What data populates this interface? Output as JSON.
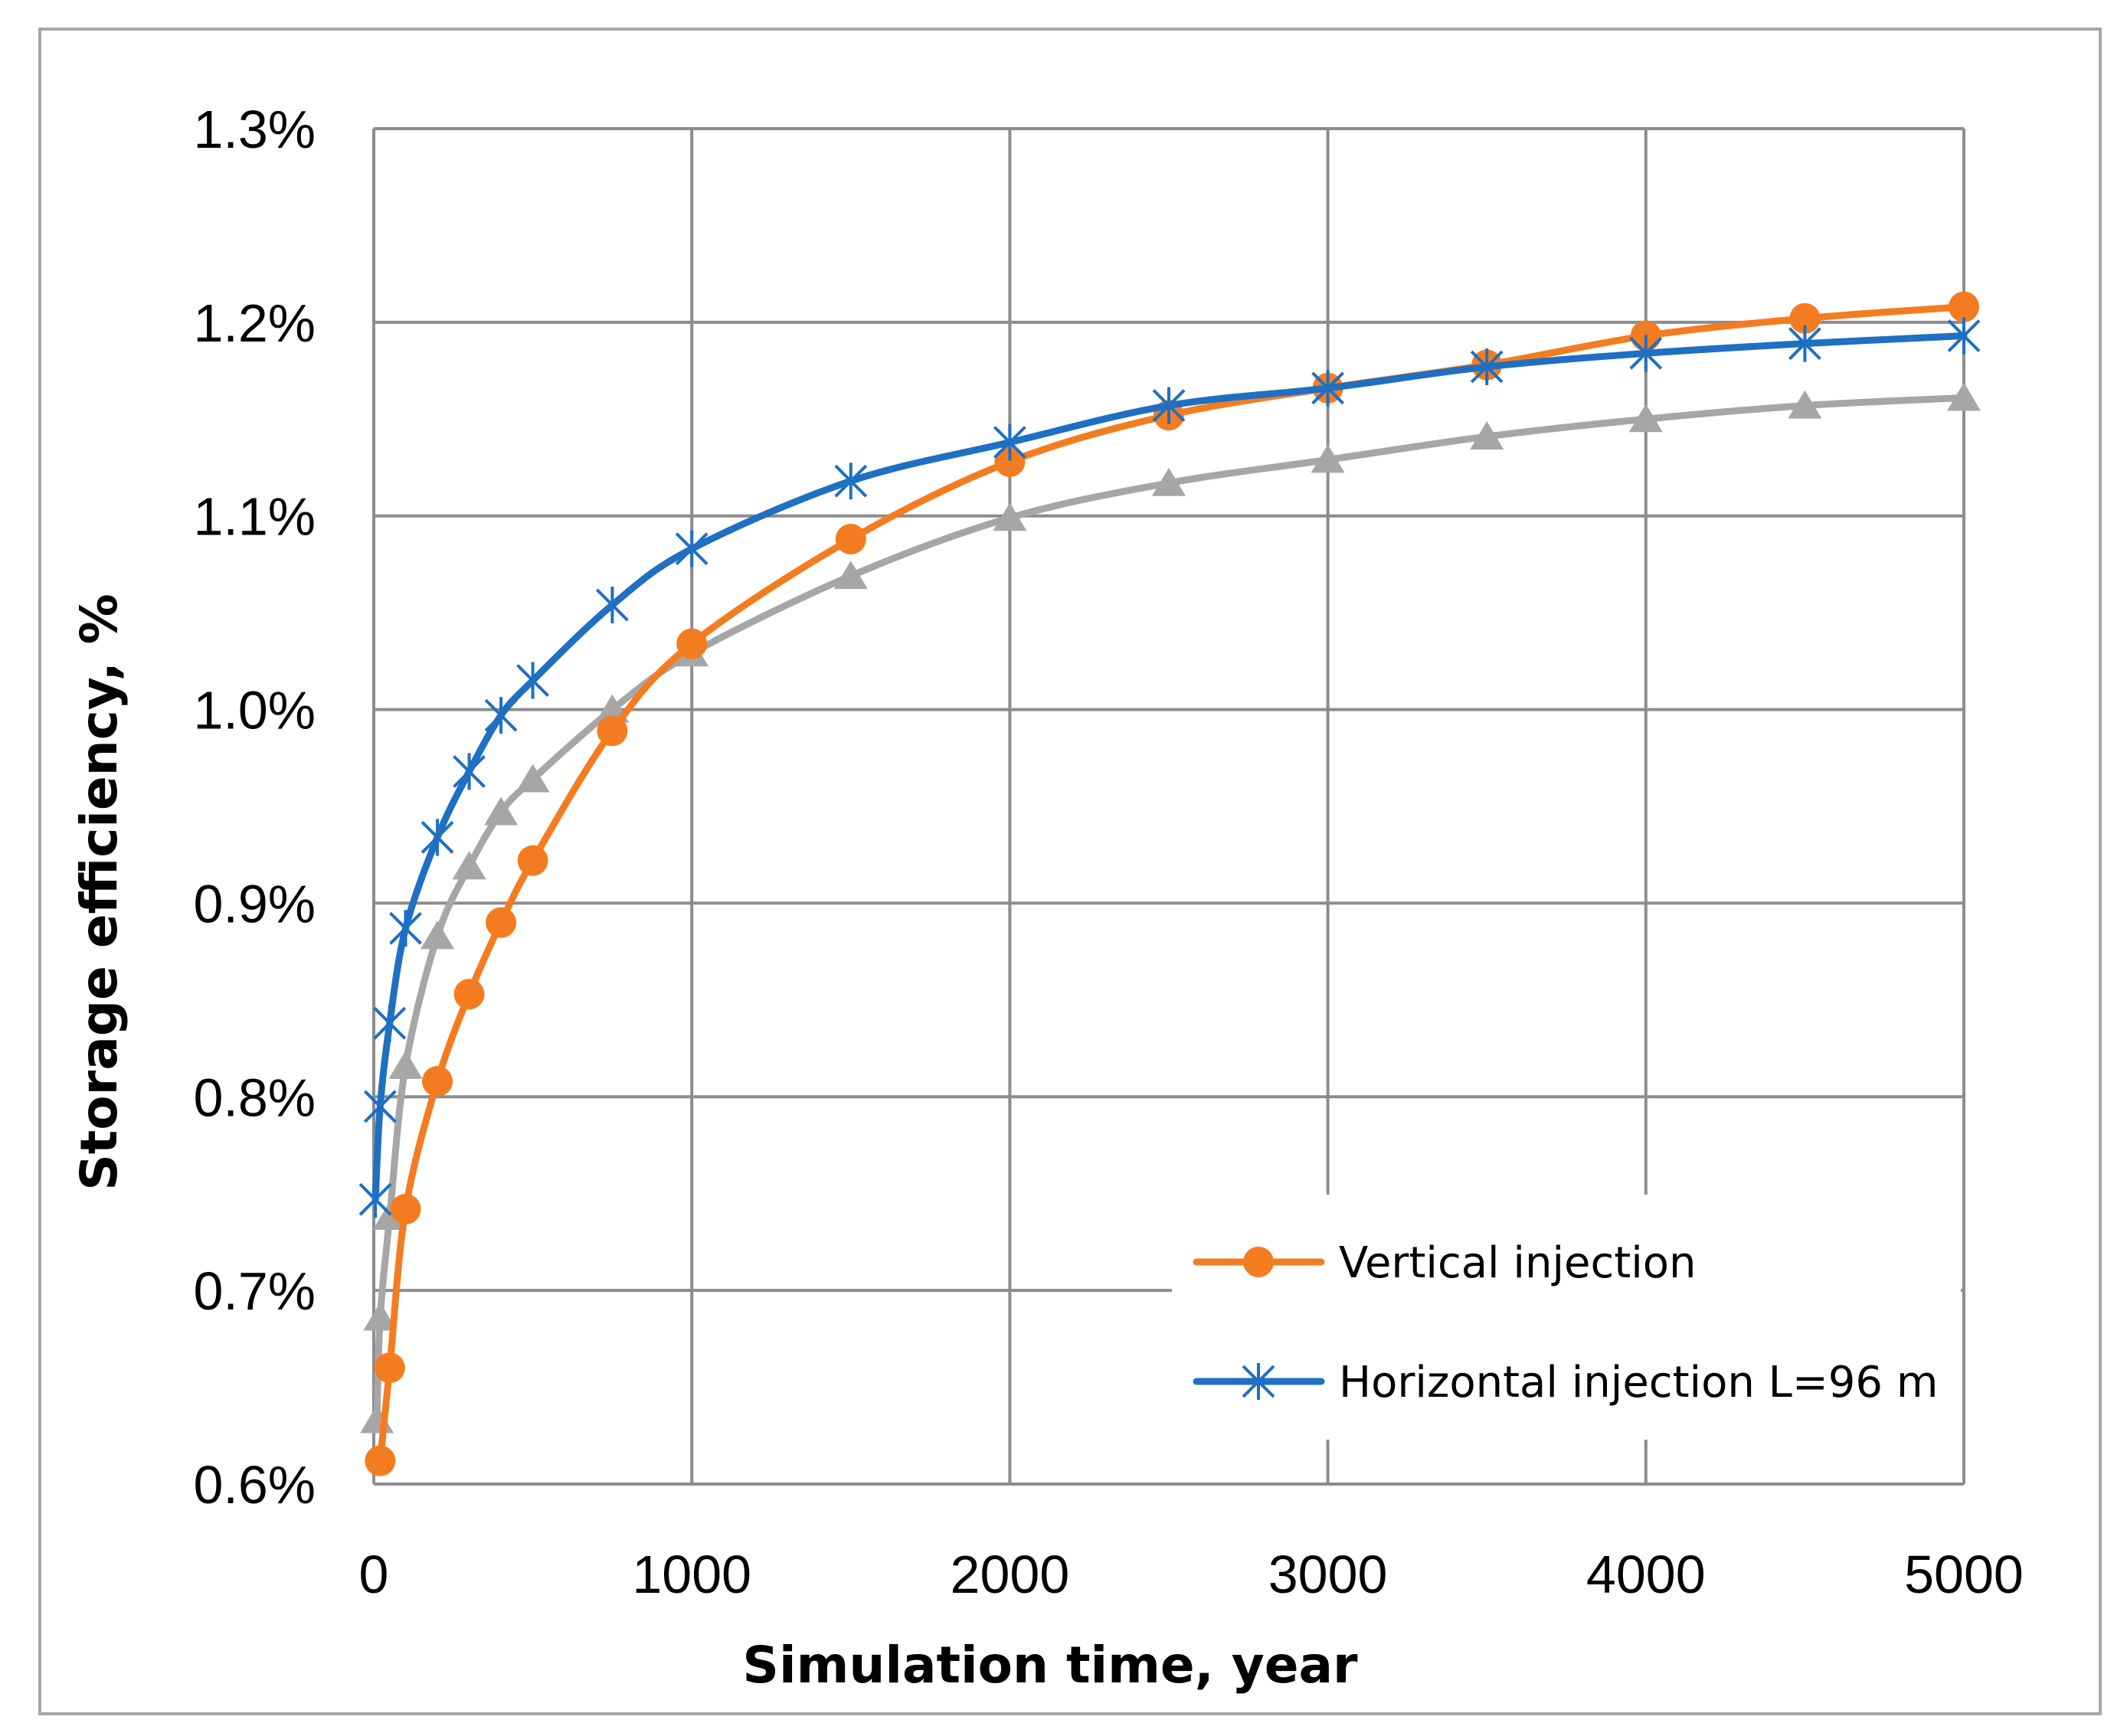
{
  "chart_data": {
    "type": "line",
    "title": "",
    "xlabel": "Simulation time, year",
    "ylabel": "Storage efficiency, %",
    "xlim": [
      0,
      5000
    ],
    "ylim": [
      0.6,
      1.3
    ],
    "x_ticks": [
      0,
      1000,
      2000,
      3000,
      4000,
      5000
    ],
    "x_tick_labels": [
      "0",
      "1000",
      "2000",
      "3000",
      "4000",
      "5000"
    ],
    "y_ticks": [
      0.6,
      0.7,
      0.8,
      0.9,
      1.0,
      1.1,
      1.2,
      1.3
    ],
    "y_tick_labels": [
      "0.6%",
      "0.7%",
      "0.8%",
      "0.9%",
      "1.0%",
      "1.1%",
      "1.2%",
      "1.3%"
    ],
    "grid": true,
    "legend_position": "bottom-right",
    "series": [
      {
        "name": "Vertical injection",
        "color": "#f47c20",
        "marker": "circle",
        "x": [
          20,
          50,
          100,
          200,
          300,
          400,
          500,
          750,
          1000,
          1500,
          2000,
          2500,
          3000,
          3500,
          4000,
          4500,
          5000
        ],
        "y": [
          0.612,
          0.66,
          0.742,
          0.808,
          0.853,
          0.89,
          0.922,
          0.989,
          1.034,
          1.088,
          1.128,
          1.152,
          1.166,
          1.178,
          1.193,
          1.202,
          1.208
        ]
      },
      {
        "name": "Horizontal injection L=96 m",
        "color": "#1f6fc3",
        "marker": "asterisk",
        "x": [
          5,
          20,
          50,
          100,
          200,
          300,
          400,
          500,
          750,
          1000,
          1500,
          2000,
          2500,
          3000,
          3500,
          4000,
          4500,
          5000
        ],
        "y": [
          0.747,
          0.795,
          0.838,
          0.887,
          0.934,
          0.968,
          0.997,
          1.015,
          1.054,
          1.083,
          1.118,
          1.138,
          1.157,
          1.166,
          1.177,
          1.184,
          1.189,
          1.193
        ]
      },
      {
        "name": "",
        "color": "#a6a6a6",
        "marker": "triangle",
        "x": [
          10,
          20,
          50,
          100,
          200,
          300,
          400,
          500,
          750,
          1000,
          1500,
          2000,
          2500,
          3000,
          3500,
          4000,
          4500,
          5000
        ],
        "y": [
          0.633,
          0.686,
          0.738,
          0.816,
          0.883,
          0.919,
          0.947,
          0.964,
          1.0,
          1.029,
          1.069,
          1.099,
          1.117,
          1.129,
          1.141,
          1.15,
          1.157,
          1.161
        ]
      }
    ]
  }
}
